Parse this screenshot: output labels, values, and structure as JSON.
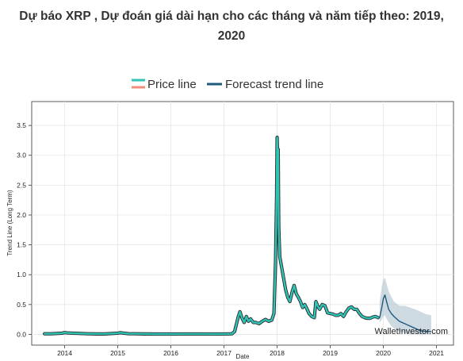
{
  "header": {
    "title_line1": "Dự báo XRP , Dự đoán giá dài hạn cho các tháng và năm tiếp theo: 2019,",
    "title_line2": "2020"
  },
  "legend": {
    "price_label": "Price line",
    "forecast_label": "Forecast trend line"
  },
  "watermark": "WalletInvestor.com",
  "colors": {
    "price_line": "#2ec4b6",
    "price_line_outline": "#2a2a2a",
    "price_legend_alt": "#f0907a",
    "forecast_line": "#1f5a7d",
    "forecast_band": "#b9cbd6",
    "grid": "#e6e6e6",
    "axis": "#333333"
  },
  "chart_data": {
    "type": "line",
    "xlabel": "Date",
    "ylabel": "Trend Line (Long Term)",
    "xlim": [
      2013.38,
      2021.32
    ],
    "ylim": [
      -0.18,
      3.9
    ],
    "x_ticks": [
      2014,
      2015,
      2016,
      2017,
      2018,
      2019,
      2020,
      2021
    ],
    "x_tick_labels": [
      "2014",
      "2015",
      "2016",
      "2017",
      "2018",
      "2019",
      "2020",
      "2021"
    ],
    "y_ticks": [
      0.0,
      0.5,
      1.0,
      1.5,
      2.0,
      2.5,
      3.0,
      3.5
    ],
    "y_tick_labels": [
      "0.0",
      "0.5",
      "1.0",
      "1.5",
      "2.0",
      "2.5",
      "3.0",
      "3.5"
    ],
    "grid": true,
    "legend_position": "top-center",
    "series": [
      {
        "name": "Price line",
        "x": [
          2013.62,
          2013.75,
          2013.85,
          2013.95,
          2014.0,
          2014.05,
          2014.15,
          2014.3,
          2014.45,
          2014.6,
          2014.75,
          2014.9,
          2015.0,
          2015.05,
          2015.1,
          2015.2,
          2015.35,
          2015.5,
          2015.7,
          2015.9,
          2016.0,
          2016.3,
          2016.6,
          2016.9,
          2017.0,
          2017.15,
          2017.2,
          2017.27,
          2017.3,
          2017.34,
          2017.38,
          2017.42,
          2017.46,
          2017.5,
          2017.55,
          2017.6,
          2017.66,
          2017.72,
          2017.78,
          2017.84,
          2017.9,
          2017.94,
          2017.97,
          2017.99,
          2018.0,
          2018.01,
          2018.02,
          2018.03,
          2018.05,
          2018.07,
          2018.1,
          2018.13,
          2018.16,
          2018.2,
          2018.24,
          2018.28,
          2018.32,
          2018.36,
          2018.4,
          2018.44,
          2018.48,
          2018.52,
          2018.56,
          2018.6,
          2018.65,
          2018.7,
          2018.73,
          2018.76,
          2018.8,
          2018.85,
          2018.9,
          2018.95,
          2019.0,
          2019.05,
          2019.1,
          2019.15,
          2019.2,
          2019.25,
          2019.3,
          2019.35,
          2019.4,
          2019.45,
          2019.5,
          2019.55,
          2019.6,
          2019.65,
          2019.7,
          2019.75,
          2019.8,
          2019.85,
          2019.9
        ],
        "values": [
          0.01,
          0.01,
          0.015,
          0.02,
          0.03,
          0.025,
          0.02,
          0.015,
          0.01,
          0.008,
          0.008,
          0.015,
          0.02,
          0.028,
          0.022,
          0.012,
          0.01,
          0.008,
          0.006,
          0.006,
          0.006,
          0.007,
          0.007,
          0.006,
          0.007,
          0.01,
          0.05,
          0.3,
          0.38,
          0.27,
          0.2,
          0.3,
          0.22,
          0.26,
          0.2,
          0.2,
          0.18,
          0.22,
          0.25,
          0.22,
          0.24,
          0.35,
          1.2,
          2.3,
          3.3,
          2.9,
          3.1,
          1.8,
          1.3,
          1.2,
          1.05,
          0.9,
          0.75,
          0.62,
          0.55,
          0.7,
          0.82,
          0.68,
          0.62,
          0.55,
          0.45,
          0.5,
          0.43,
          0.35,
          0.3,
          0.28,
          0.55,
          0.48,
          0.42,
          0.5,
          0.48,
          0.36,
          0.35,
          0.34,
          0.32,
          0.32,
          0.35,
          0.3,
          0.38,
          0.44,
          0.46,
          0.42,
          0.42,
          0.35,
          0.3,
          0.28,
          0.27,
          0.27,
          0.29,
          0.3,
          0.28
        ]
      },
      {
        "name": "Forecast trend line",
        "x": [
          2019.93,
          2019.97,
          2020.0,
          2020.03,
          2020.06,
          2020.1,
          2020.15,
          2020.2,
          2020.3,
          2020.4,
          2020.5,
          2020.6,
          2020.7,
          2020.8,
          2020.9
        ],
        "values": [
          0.28,
          0.45,
          0.6,
          0.66,
          0.55,
          0.42,
          0.35,
          0.3,
          0.22,
          0.18,
          0.14,
          0.1,
          0.06,
          0.05,
          0.05
        ],
        "band_upper": [
          0.55,
          0.8,
          0.92,
          0.95,
          0.85,
          0.72,
          0.63,
          0.55,
          0.48,
          0.48,
          0.45,
          0.42,
          0.38,
          0.34,
          0.32
        ],
        "band_lower": [
          0.2,
          0.25,
          0.3,
          0.32,
          0.26,
          0.2,
          0.14,
          0.1,
          0.05,
          0.02,
          0.0,
          0.0,
          0.0,
          0.0,
          0.0
        ]
      }
    ]
  }
}
